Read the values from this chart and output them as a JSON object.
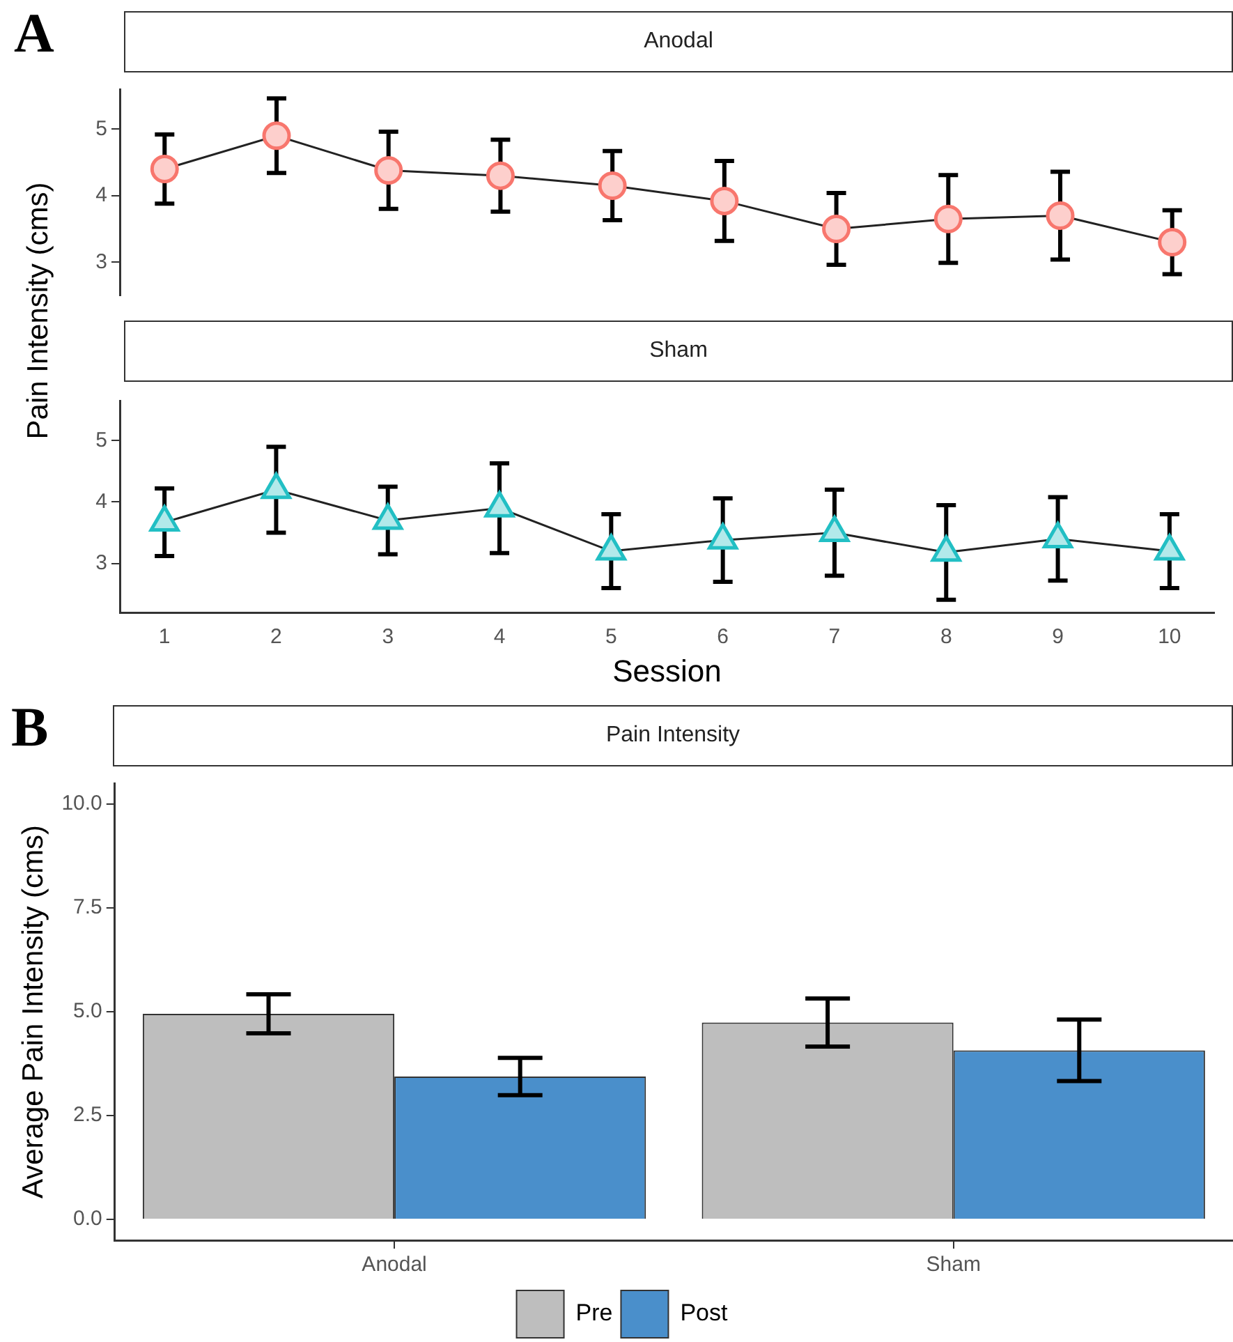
{
  "chart_data": [
    {
      "type": "line",
      "title": "Anodal",
      "ylabel": "Pain Intensity (cms)",
      "annotations": [
        "A"
      ],
      "x": [
        1,
        2,
        3,
        4,
        5,
        6,
        7,
        8,
        9,
        10
      ],
      "ylim": [
        2.5,
        5.6
      ],
      "yticks": [
        3,
        4,
        5
      ],
      "tick_labels": "y",
      "marker": "circle",
      "grid": false,
      "legend": false,
      "series": [
        {
          "color": "#f8766d",
          "values": [
            4.4,
            4.9,
            4.38,
            4.3,
            4.15,
            3.92,
            3.5,
            3.65,
            3.7,
            3.3
          ],
          "errors": [
            0.52,
            0.56,
            0.58,
            0.54,
            0.52,
            0.6,
            0.54,
            0.66,
            0.66,
            0.48
          ]
        }
      ]
    },
    {
      "type": "line",
      "title": "Sham",
      "xlabel": "Session",
      "x": [
        1,
        2,
        3,
        4,
        5,
        6,
        7,
        8,
        9,
        10
      ],
      "xlim": [
        0.6,
        10.4
      ],
      "xticks": [
        1,
        2,
        3,
        4,
        5,
        6,
        7,
        8,
        9,
        10
      ],
      "ylim": [
        2.2,
        5.65
      ],
      "yticks": [
        3,
        4,
        5
      ],
      "marker": "triangle",
      "grid": false,
      "legend": false,
      "series": [
        {
          "color": "#22bfc4",
          "values": [
            3.67,
            4.2,
            3.7,
            3.9,
            3.2,
            3.38,
            3.5,
            3.18,
            3.4,
            3.2
          ],
          "errors": [
            0.55,
            0.7,
            0.55,
            0.73,
            0.6,
            0.68,
            0.7,
            0.77,
            0.68,
            0.6
          ]
        }
      ]
    },
    {
      "type": "bar",
      "title": "Pain Intensity",
      "ylabel": "Average Pain Intensity (cms)",
      "annotations": [
        "B"
      ],
      "categories": [
        "Anodal",
        "Sham"
      ],
      "ylim": [
        -0.5,
        10.5
      ],
      "yticks": [
        {
          "value": 0,
          "label": "0.0"
        },
        {
          "value": 2.5,
          "label": "2.5"
        },
        {
          "value": 5,
          "label": "5.0"
        },
        {
          "value": 7.5,
          "label": "7.5"
        },
        {
          "value": 10,
          "label": "10.0"
        }
      ],
      "grid": false,
      "legend": "bottom",
      "series": [
        {
          "name": "Pre",
          "color": "#bebebe",
          "values": [
            4.95,
            4.74
          ],
          "errors": [
            0.47,
            0.58
          ]
        },
        {
          "name": "Post",
          "color": "#4a8fcb",
          "values": [
            3.44,
            4.07
          ],
          "errors": [
            0.45,
            0.74
          ]
        }
      ]
    }
  ]
}
